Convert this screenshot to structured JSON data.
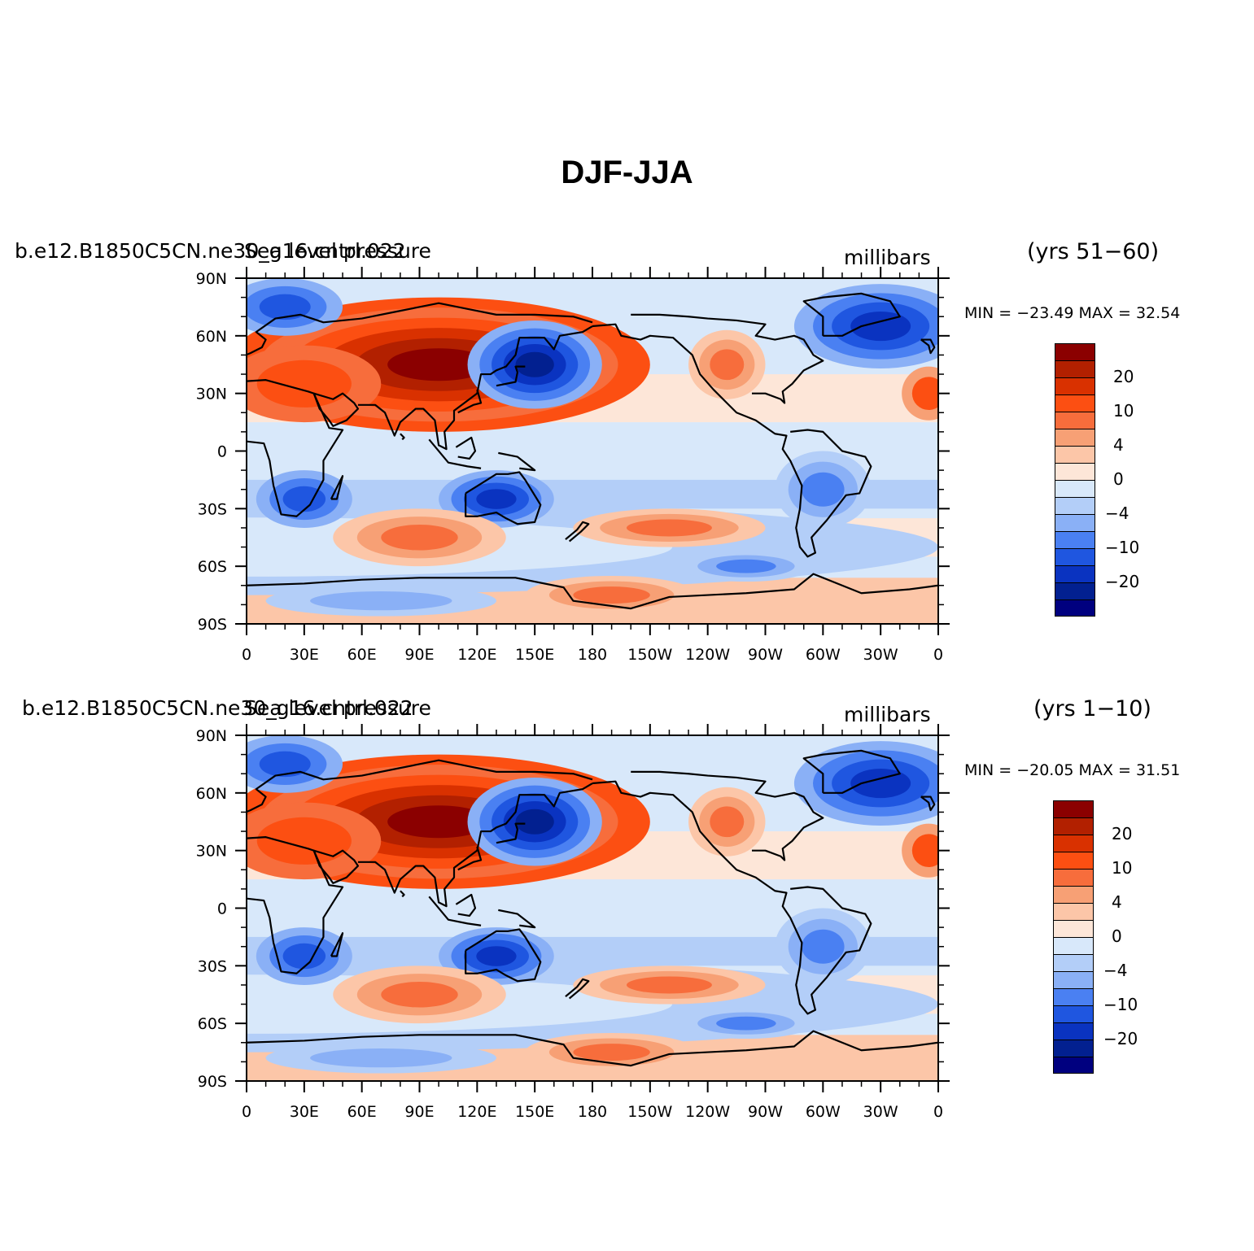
{
  "title": "DJF-JJA",
  "panels": [
    {
      "case_label": "b.e12.B1850C5CN.ne30_g16.cntrl.022",
      "variable": "Sea level pressure",
      "units": "millibars",
      "years": "(yrs 51−60)",
      "minmax": "MIN = −23.49  MAX =  32.54"
    },
    {
      "case_label": "b.e12.B1850C5CN.ne30_g16.cntrl.022",
      "variable": "Sea level pressure",
      "units": "millibars",
      "years": "(yrs 1−10)",
      "minmax": "MIN = −20.05  MAX =  31.51"
    }
  ],
  "lat_ticks": [
    "90N",
    "60N",
    "30N",
    "0",
    "30S",
    "60S",
    "90S"
  ],
  "lon_ticks": [
    "0",
    "30E",
    "60E",
    "90E",
    "120E",
    "150E",
    "180",
    "150W",
    "120W",
    "90W",
    "60W",
    "30W",
    "0"
  ],
  "colorbar": {
    "colors": [
      "#8b0000",
      "#b22000",
      "#d93100",
      "#fc4f12",
      "#f76d3c",
      "#f7a075",
      "#fcc6a8",
      "#fde6d8",
      "#d8e8fa",
      "#b3cef8",
      "#8ab0f6",
      "#4a80f2",
      "#1f56e0",
      "#0a33c0",
      "#022090",
      "#00007f"
    ],
    "labels": [
      "20",
      "10",
      "4",
      "0",
      "−4",
      "−10",
      "−20"
    ]
  }
}
